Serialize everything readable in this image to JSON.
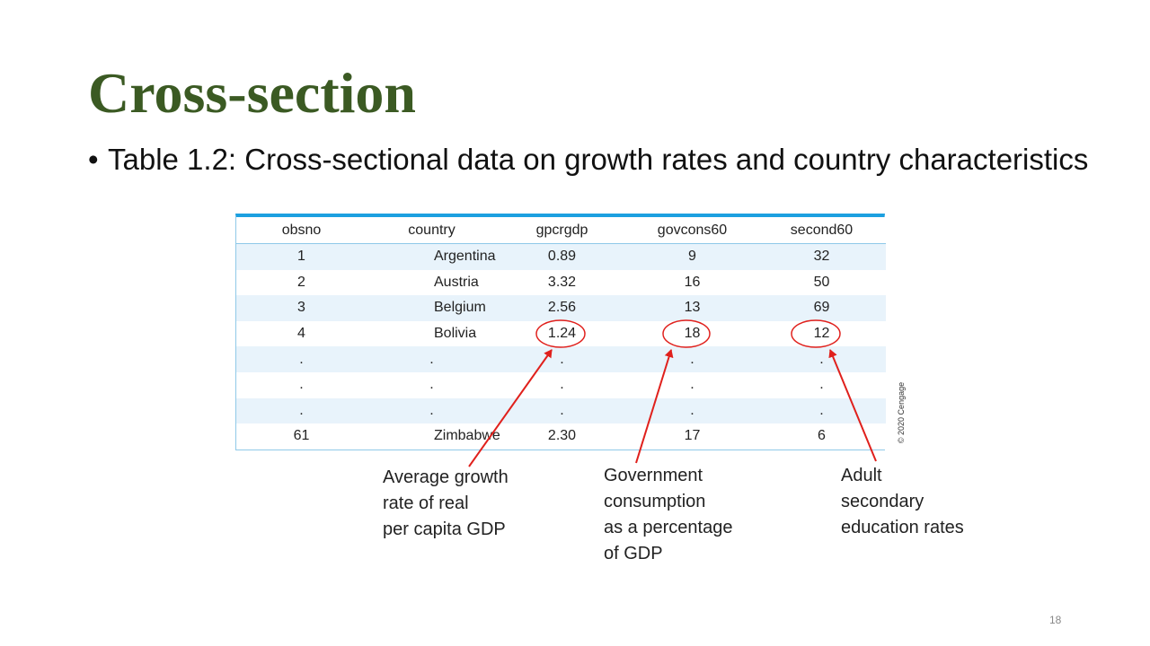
{
  "slide": {
    "title": "Cross-section",
    "bullet": "•",
    "subtitle": "Table 1.2: Cross-sectional data on growth rates and country characteristics",
    "page_number": "18"
  },
  "table": {
    "headers": [
      "obsno",
      "country",
      "gpcrgdp",
      "govcons60",
      "second60"
    ],
    "rows": [
      [
        "1",
        "Argentina",
        "0.89",
        "9",
        "32"
      ],
      [
        "2",
        "Austria",
        "3.32",
        "16",
        "50"
      ],
      [
        "3",
        "Belgium",
        "2.56",
        "13",
        "69"
      ],
      [
        "4",
        "Bolivia",
        "1.24",
        "18",
        "12"
      ],
      [
        ".",
        ".",
        ".",
        ".",
        "."
      ],
      [
        ".",
        ".",
        ".",
        ".",
        "."
      ],
      [
        ".",
        ".",
        ".",
        ".",
        "."
      ],
      [
        "61",
        "Zimbabwe",
        "2.30",
        "17",
        "6"
      ]
    ],
    "copyright": "© 2020 Cengage"
  },
  "annotations": {
    "color": "#e0201c",
    "gpcrgdp_caption": [
      "Average growth",
      "rate of real",
      "per capita GDP"
    ],
    "govcons60_caption": [
      "Government",
      "consumption",
      "as a percentage",
      "of GDP"
    ],
    "second60_caption": [
      "Adult",
      "secondary",
      "education rates"
    ]
  }
}
